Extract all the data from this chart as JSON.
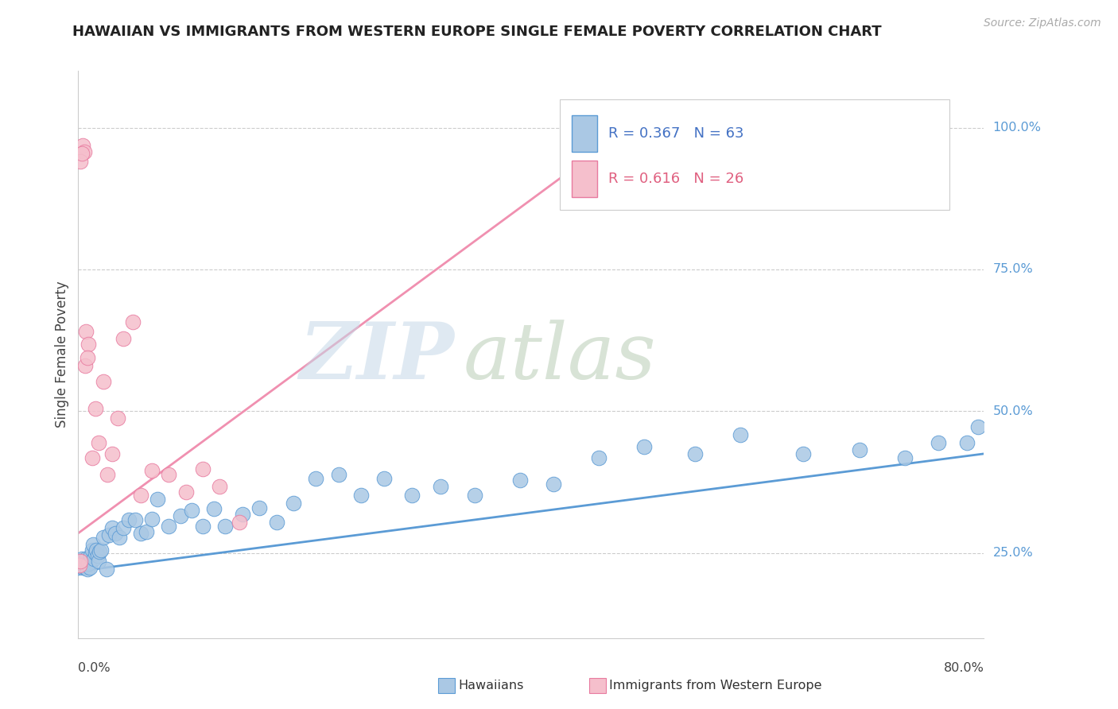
{
  "title": "HAWAIIAN VS IMMIGRANTS FROM WESTERN EUROPE SINGLE FEMALE POVERTY CORRELATION CHART",
  "source": "Source: ZipAtlas.com",
  "ylabel": "Single Female Poverty",
  "yticks": [
    0.25,
    0.5,
    0.75,
    1.0
  ],
  "ytick_labels": [
    "25.0%",
    "50.0%",
    "75.0%",
    "100.0%"
  ],
  "xmin": 0.0,
  "xmax": 0.8,
  "ymin": 0.1,
  "ymax": 1.1,
  "hawaiians_R": "0.367",
  "hawaiians_N": "63",
  "immigrants_R": "0.616",
  "immigrants_N": "26",
  "hawaiians_dot_color": "#aac8e4",
  "hawaiians_edge_color": "#5b9bd5",
  "immigrants_dot_color": "#f5bfcc",
  "immigrants_edge_color": "#e87a9f",
  "hawaiians_line_color": "#5b9bd5",
  "immigrants_line_color": "#f090b0",
  "legend_r_color": "#4472c4",
  "legend_r2_color": "#e06080",
  "hawaiians_x": [
    0.0,
    0.001,
    0.002,
    0.003,
    0.004,
    0.005,
    0.006,
    0.007,
    0.008,
    0.009,
    0.01,
    0.011,
    0.012,
    0.013,
    0.014,
    0.015,
    0.016,
    0.017,
    0.018,
    0.019,
    0.02,
    0.022,
    0.025,
    0.027,
    0.03,
    0.033,
    0.036,
    0.04,
    0.045,
    0.05,
    0.055,
    0.06,
    0.065,
    0.07,
    0.08,
    0.09,
    0.1,
    0.11,
    0.12,
    0.13,
    0.145,
    0.16,
    0.175,
    0.19,
    0.21,
    0.23,
    0.25,
    0.27,
    0.295,
    0.32,
    0.35,
    0.39,
    0.42,
    0.46,
    0.5,
    0.545,
    0.585,
    0.64,
    0.69,
    0.73,
    0.76,
    0.785,
    0.795
  ],
  "hawaiians_y": [
    0.225,
    0.23,
    0.235,
    0.24,
    0.225,
    0.23,
    0.225,
    0.24,
    0.222,
    0.232,
    0.225,
    0.245,
    0.255,
    0.265,
    0.24,
    0.25,
    0.255,
    0.245,
    0.235,
    0.252,
    0.255,
    0.278,
    0.222,
    0.282,
    0.295,
    0.285,
    0.278,
    0.295,
    0.308,
    0.308,
    0.285,
    0.288,
    0.31,
    0.345,
    0.298,
    0.315,
    0.325,
    0.298,
    0.328,
    0.298,
    0.318,
    0.33,
    0.305,
    0.338,
    0.382,
    0.388,
    0.352,
    0.382,
    0.352,
    0.368,
    0.352,
    0.378,
    0.372,
    0.418,
    0.438,
    0.425,
    0.458,
    0.425,
    0.432,
    0.418,
    0.445,
    0.445,
    0.472
  ],
  "immigrants_x": [
    0.001,
    0.002,
    0.004,
    0.005,
    0.007,
    0.009,
    0.012,
    0.015,
    0.018,
    0.022,
    0.026,
    0.03,
    0.035,
    0.04,
    0.048,
    0.055,
    0.065,
    0.08,
    0.095,
    0.11,
    0.125,
    0.142,
    0.002,
    0.003,
    0.006,
    0.008
  ],
  "immigrants_y": [
    0.228,
    0.235,
    0.968,
    0.958,
    0.64,
    0.618,
    0.418,
    0.505,
    0.445,
    0.552,
    0.388,
    0.425,
    0.488,
    0.628,
    0.658,
    0.352,
    0.395,
    0.388,
    0.358,
    0.398,
    0.368,
    0.305,
    0.94,
    0.955,
    0.58,
    0.595
  ],
  "im_line_x0": 0.0,
  "im_line_y0": 0.285,
  "im_line_x1": 0.5,
  "im_line_y1": 1.02,
  "hw_line_x0": 0.0,
  "hw_line_y0": 0.218,
  "hw_line_x1": 0.8,
  "hw_line_y1": 0.425
}
